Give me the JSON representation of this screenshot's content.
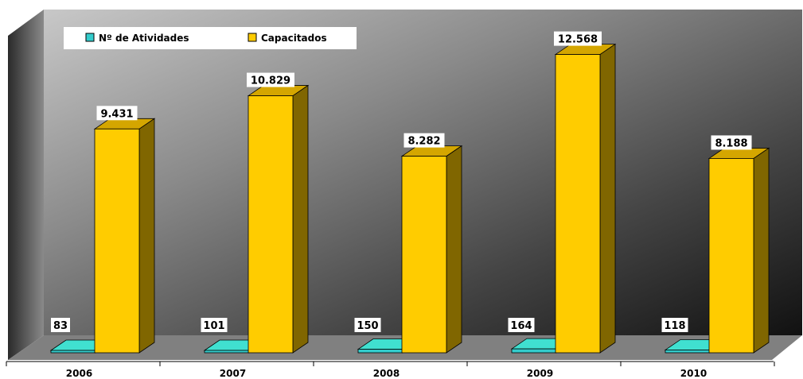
{
  "chart_data": {
    "type": "bar",
    "categories": [
      "2006",
      "2007",
      "2008",
      "2009",
      "2010"
    ],
    "series": [
      {
        "name": "Nº de Atividades",
        "values": [
          83,
          101,
          150,
          164,
          118
        ],
        "labels": [
          "83",
          "101",
          "150",
          "164",
          "118"
        ]
      },
      {
        "name": "Capacitados",
        "values": [
          9431,
          10829,
          8282,
          12568,
          8188
        ],
        "labels": [
          "9.431",
          "10.829",
          "8.282",
          "12.568",
          "8.188"
        ]
      }
    ],
    "title": "",
    "xlabel": "",
    "ylabel": "",
    "ylim": [
      0,
      14000
    ],
    "grid": false,
    "legend_position": "top-left",
    "three_d": true
  },
  "colors": {
    "series_1_front": "#33CCCC",
    "series_1_top": "#40E0D0",
    "series_1_side": "#1F8C8C",
    "series_2_front": "#FFCC00",
    "series_2_top": "#D4A600",
    "series_2_side": "#806600",
    "floor": "#808080",
    "axis": "#000000"
  }
}
